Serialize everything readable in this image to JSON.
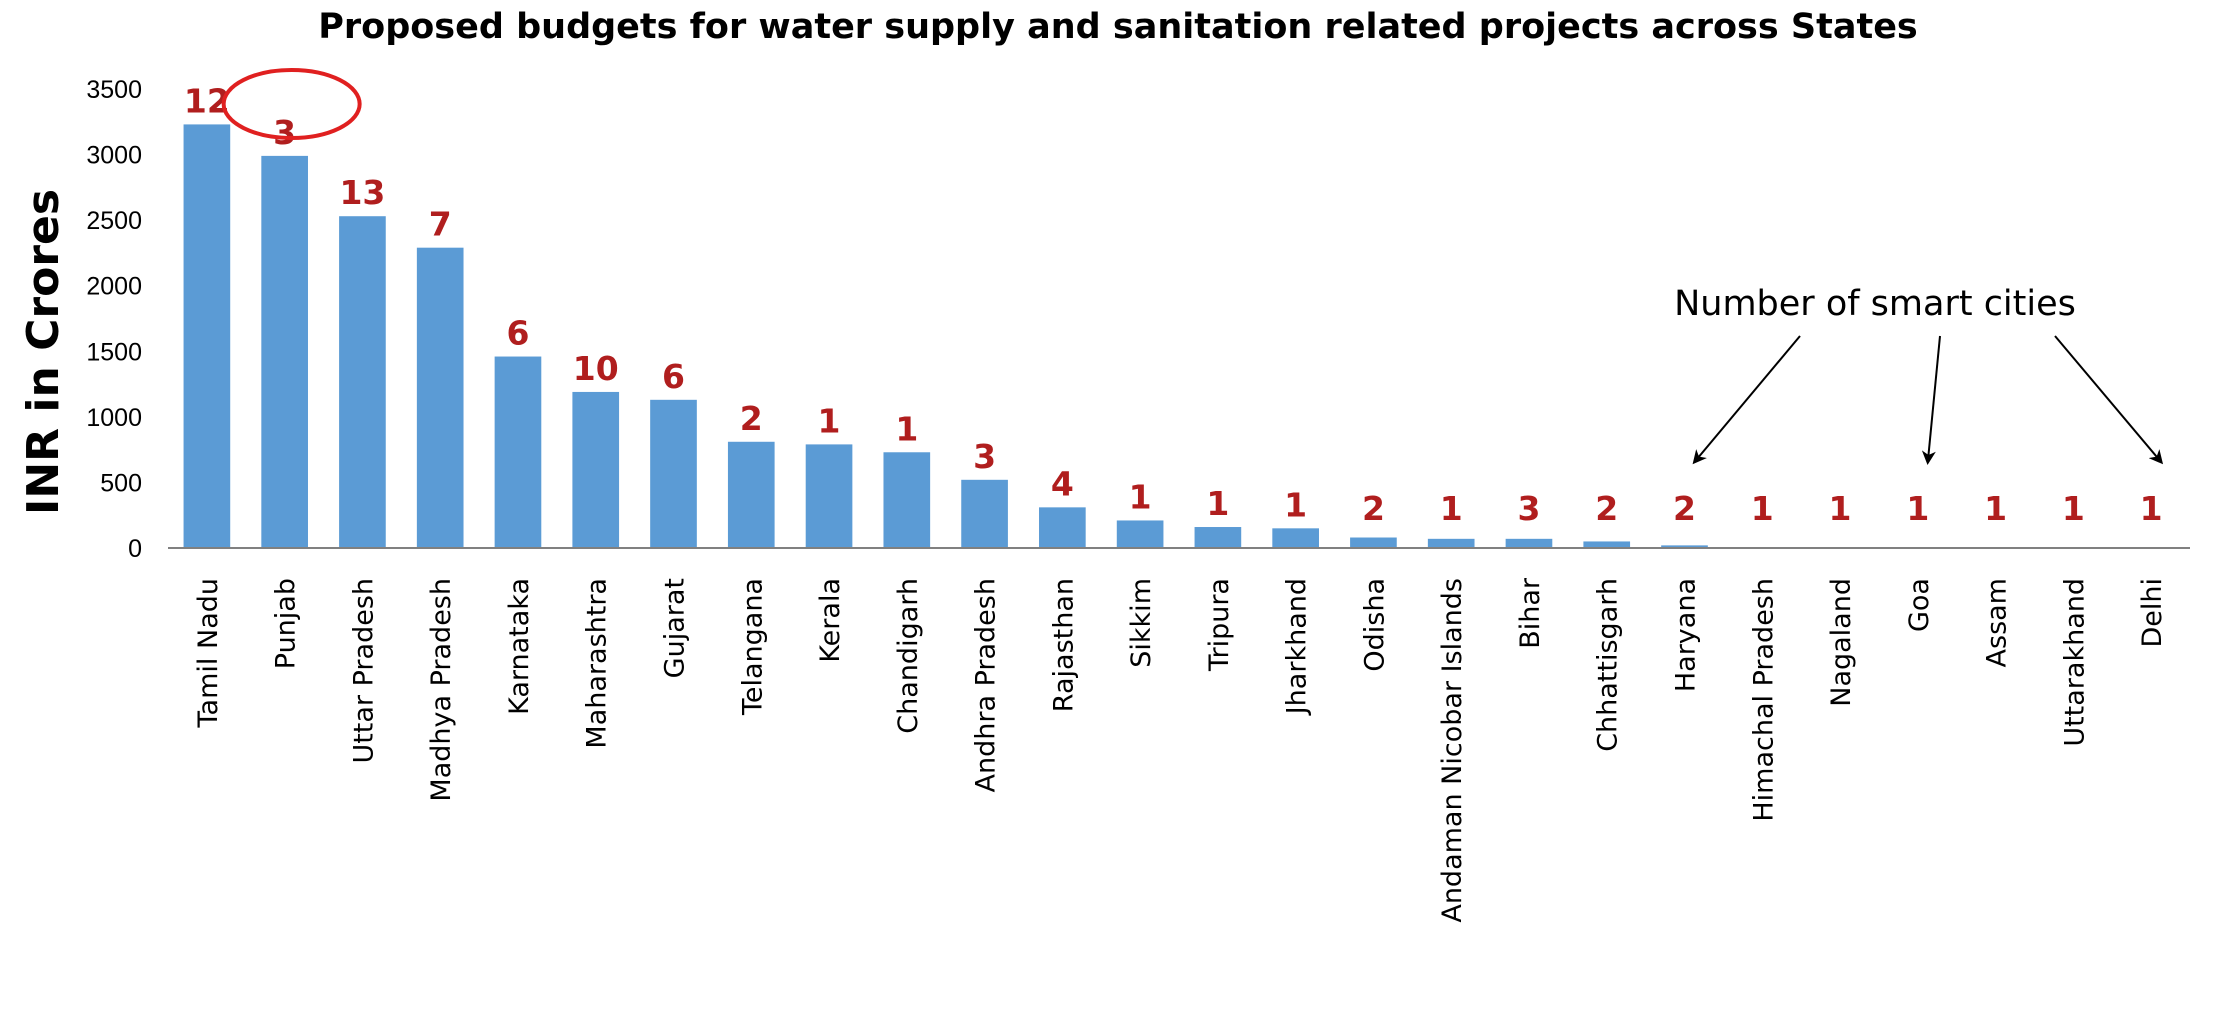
{
  "chart_data": {
    "type": "bar",
    "title": "Proposed budgets for water supply and sanitation related projects across States",
    "xlabel": "",
    "ylabel": "INR in Crores",
    "ylim": [
      0,
      3500
    ],
    "yticks": [
      "0",
      "500",
      "1000",
      "1500",
      "2000",
      "2500",
      "3000",
      "3500"
    ],
    "grid": false,
    "legend": "none",
    "categories": [
      "Tamil Nadu",
      "Punjab",
      "Uttar Pradesh",
      "Madhya Pradesh",
      "Karnataka",
      "Maharashtra",
      "Gujarat",
      "Telangana",
      "Kerala",
      "Chandigarh",
      "Andhra Pradesh",
      "Rajasthan",
      "Sikkim",
      "Tripura",
      "Jharkhand",
      "Odisha",
      "Andaman Nicobar Islands",
      "Bihar",
      "Chhattisgarh",
      "Haryana",
      "Himachal Pradesh",
      "Nagaland",
      "Goa",
      "Assam",
      "Uttarakhand",
      "Delhi"
    ],
    "series": [
      {
        "values": [
          3230,
          2990,
          2530,
          2290,
          1460,
          1190,
          1130,
          810,
          790,
          730,
          520,
          310,
          210,
          160,
          150,
          80,
          70,
          70,
          50,
          20,
          0,
          0,
          0,
          0,
          0,
          0
        ]
      }
    ],
    "data_labels": [
      "12",
      "3",
      "13",
      "7",
      "6",
      "10",
      "6",
      "2",
      "1",
      "1",
      "3",
      "4",
      "1",
      "1",
      "1",
      "2",
      "1",
      "3",
      "2",
      "2",
      "1",
      "1",
      "1",
      "1",
      "1",
      "1"
    ],
    "annotations": {
      "text": "Number of smart cities",
      "highlighted_category": "Punjab",
      "arrow_targets": [
        "Haryana",
        "Goa",
        "Delhi"
      ]
    },
    "colors": {
      "bar": "#5b9bd5",
      "data_label": "#b01e1e",
      "highlight_circle": "#e02020",
      "axis": "#808080"
    }
  }
}
